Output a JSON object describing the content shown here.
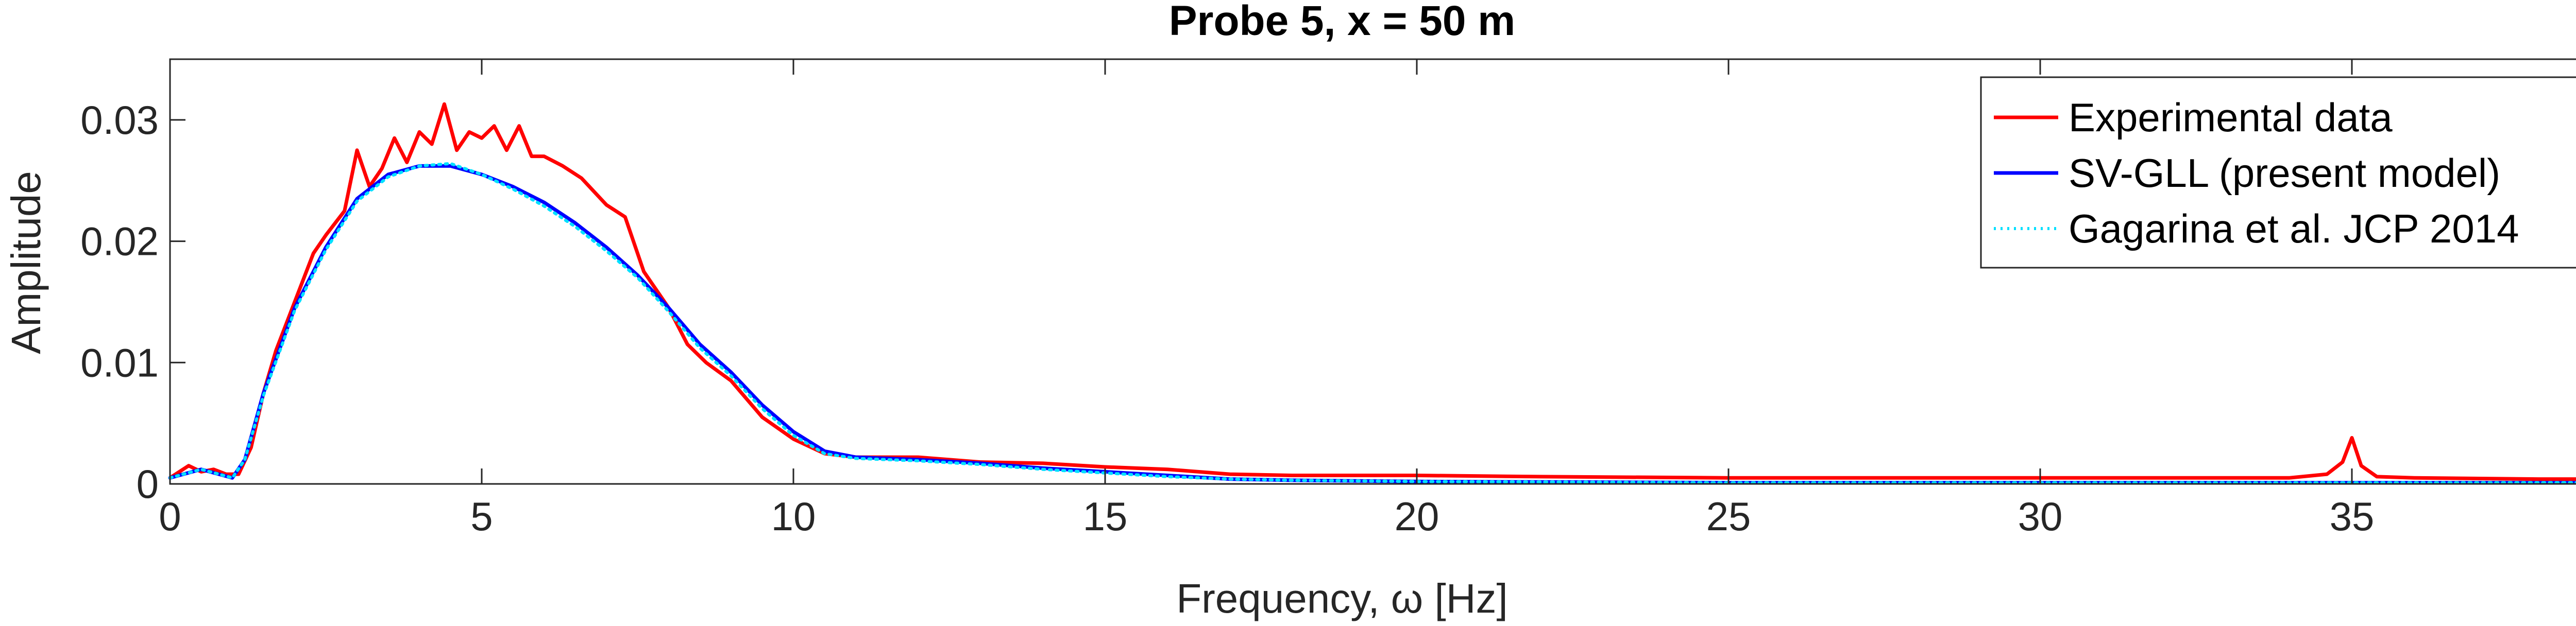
{
  "chart_data": {
    "type": "line",
    "title": "Probe 5, x = 50 m",
    "xlabel": "Frequency, ω [Hz]",
    "ylabel": "Amplitude",
    "xlim": [
      0,
      40
    ],
    "ylim": [
      0,
      0.035
    ],
    "xticks": [
      0,
      5,
      10,
      15,
      20,
      25,
      30,
      35,
      40
    ],
    "xtick_labels": [
      "0",
      "5",
      "10",
      "15",
      "20",
      "25",
      "30",
      "35",
      "40"
    ],
    "yticks": [
      0,
      0.01,
      0.02,
      0.03
    ],
    "ytick_labels": [
      "0",
      "0.01",
      "0.02",
      "0.03"
    ],
    "grid": false,
    "legend_position": "top-right",
    "series": [
      {
        "name": "Experimental data",
        "color": "#ff0000",
        "style": "solid",
        "x": [
          0,
          0.3,
          0.5,
          0.7,
          0.9,
          1.1,
          1.3,
          1.5,
          1.7,
          2.0,
          2.3,
          2.5,
          2.8,
          3.0,
          3.2,
          3.4,
          3.6,
          3.8,
          4.0,
          4.2,
          4.4,
          4.6,
          4.8,
          5.0,
          5.2,
          5.4,
          5.6,
          5.8,
          6.0,
          6.3,
          6.6,
          7.0,
          7.3,
          7.6,
          8.0,
          8.3,
          8.6,
          9.0,
          9.5,
          10.0,
          10.5,
          11.0,
          12.0,
          13.0,
          14.0,
          15.0,
          16.0,
          17.0,
          18.0,
          20.0,
          22.0,
          25.0,
          28.0,
          30.0,
          32.0,
          34.0,
          34.6,
          34.85,
          35.0,
          35.15,
          35.4,
          36.0,
          38.0,
          39.0,
          40.0
        ],
        "y": [
          0.0005,
          0.0015,
          0.001,
          0.0012,
          0.0008,
          0.0008,
          0.003,
          0.0075,
          0.011,
          0.015,
          0.019,
          0.0205,
          0.0225,
          0.0275,
          0.0245,
          0.026,
          0.0285,
          0.0265,
          0.029,
          0.028,
          0.0313,
          0.0275,
          0.029,
          0.0285,
          0.0295,
          0.0275,
          0.0295,
          0.027,
          0.027,
          0.0262,
          0.0252,
          0.023,
          0.022,
          0.0175,
          0.0145,
          0.0115,
          0.01,
          0.0085,
          0.0055,
          0.0037,
          0.0025,
          0.0022,
          0.0022,
          0.0018,
          0.0017,
          0.0014,
          0.0012,
          0.0008,
          0.0007,
          0.0007,
          0.0006,
          0.0005,
          0.0005,
          0.0005,
          0.0005,
          0.0005,
          0.0008,
          0.0018,
          0.0038,
          0.0015,
          0.0006,
          0.0005,
          0.0004,
          0.0004,
          0.0007
        ]
      },
      {
        "name": "SV-GLL (present model)",
        "color": "#0000ff",
        "style": "solid",
        "x": [
          0,
          0.5,
          1.0,
          1.2,
          1.5,
          2.0,
          2.5,
          3.0,
          3.5,
          4.0,
          4.5,
          5.0,
          5.5,
          6.0,
          6.5,
          7.0,
          7.5,
          8.0,
          8.5,
          9.0,
          9.5,
          10.0,
          10.5,
          11.0,
          12.0,
          13.0,
          14.0,
          15.0,
          16.0,
          17.0,
          18.0,
          20.0,
          25.0,
          30.0,
          35.0,
          40.0
        ],
        "y": [
          0.0005,
          0.0012,
          0.0005,
          0.002,
          0.0075,
          0.0145,
          0.0195,
          0.0235,
          0.0255,
          0.0262,
          0.0262,
          0.0255,
          0.0245,
          0.0232,
          0.0215,
          0.0195,
          0.0172,
          0.0145,
          0.0115,
          0.0092,
          0.0065,
          0.0043,
          0.0027,
          0.0022,
          0.002,
          0.0017,
          0.0013,
          0.001,
          0.0007,
          0.0004,
          0.0003,
          0.0002,
          0.0001,
          0.0001,
          0.0001,
          0.0001
        ]
      },
      {
        "name": "Gagarina et al. JCP 2014",
        "color": "#00e0ff",
        "style": "dotted",
        "x": [
          0,
          0.5,
          1.0,
          1.2,
          1.5,
          2.0,
          2.5,
          3.0,
          3.5,
          4.0,
          4.5,
          5.0,
          5.5,
          6.0,
          6.5,
          7.0,
          7.5,
          8.0,
          8.5,
          9.0,
          9.5,
          10.0,
          10.5,
          11.0,
          12.0,
          13.0,
          14.0,
          15.0,
          16.0,
          17.0,
          18.0,
          20.0,
          25.0,
          30.0,
          35.0,
          40.0
        ],
        "y": [
          0.0005,
          0.0012,
          0.0005,
          0.002,
          0.0073,
          0.0143,
          0.0193,
          0.0233,
          0.0253,
          0.0262,
          0.0264,
          0.0255,
          0.0243,
          0.0229,
          0.0212,
          0.0192,
          0.017,
          0.0142,
          0.0112,
          0.0089,
          0.0062,
          0.004,
          0.0025,
          0.0021,
          0.0019,
          0.0016,
          0.0012,
          0.0009,
          0.0006,
          0.0004,
          0.0003,
          0.0002,
          0.0001,
          0.0001,
          0.0001,
          0.0001
        ]
      }
    ]
  }
}
